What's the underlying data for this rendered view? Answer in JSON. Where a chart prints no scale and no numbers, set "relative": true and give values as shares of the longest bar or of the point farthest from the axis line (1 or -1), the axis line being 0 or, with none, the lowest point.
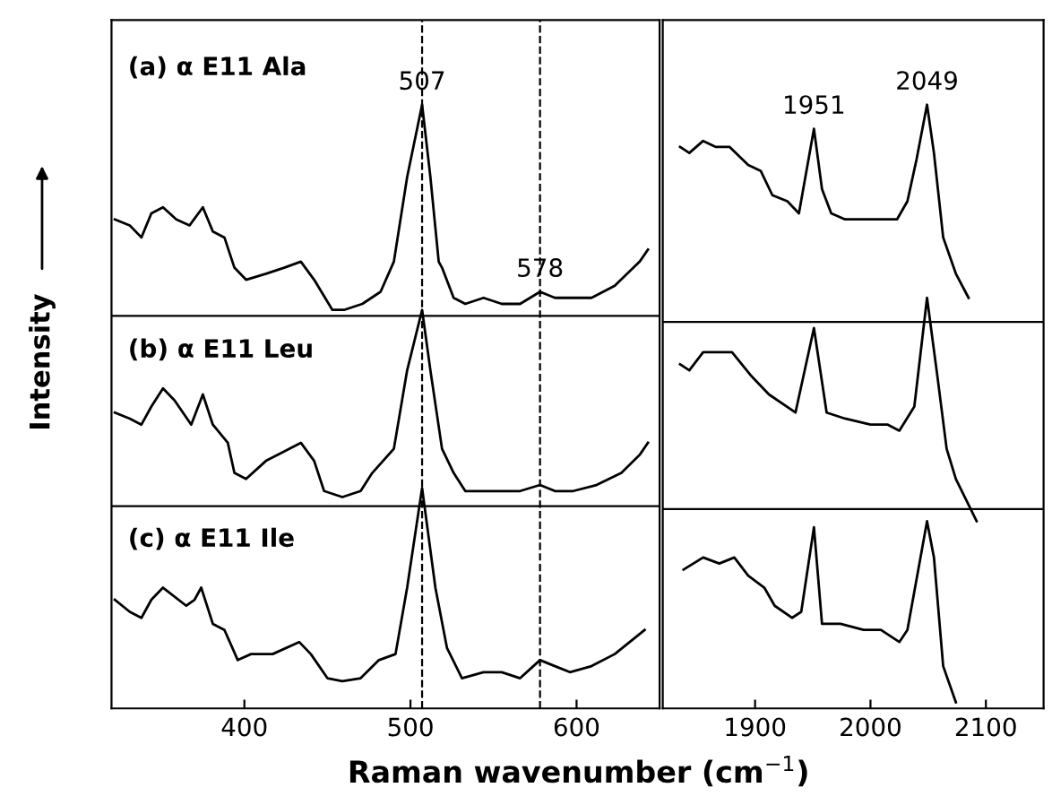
{
  "chart_data": [
    {
      "type": "line",
      "relative": true,
      "xlim": [
        320,
        650
      ],
      "xticks": [
        400,
        500,
        600
      ],
      "tick_labels": "x",
      "xlabel": "Raman wavenumber (cm$^{−1}$)",
      "ylabel": "Intensity",
      "grid": false,
      "legend": false,
      "marker": "none",
      "line_style": "solid",
      "annotations": [
        "(a) α E11 Ala",
        "(b) α E11 Leu",
        "(c) α E11 Ile",
        {
          "text": "507",
          "x": 507,
          "y": 1.0
        },
        {
          "text": "578",
          "x": 578,
          "y": 0.69
        }
      ],
      "ref_lines": [
        {
          "axis": "x",
          "value": 507,
          "color": "#000000",
          "line_style": "dashed"
        },
        {
          "axis": "x",
          "value": 578,
          "color": "#000000",
          "line_style": "dashed"
        },
        {
          "axis": "y",
          "value": 0.65,
          "color": "#000000"
        },
        {
          "axis": "y",
          "value": 0.335,
          "color": "#000000"
        }
      ],
      "series": [
        {
          "color": "#000000",
          "x": [
            322,
            331,
            338,
            344,
            351,
            359,
            367,
            375,
            381,
            388,
            394,
            401,
            413,
            424,
            434,
            442,
            453,
            460,
            471,
            482,
            490,
            498,
            507,
            512,
            517,
            519,
            526,
            533,
            544,
            555,
            566,
            578,
            587,
            598,
            609,
            623,
            638,
            643
          ],
          "values": [
            0.81,
            0.8,
            0.78,
            0.82,
            0.83,
            0.81,
            0.8,
            0.83,
            0.79,
            0.78,
            0.73,
            0.71,
            0.72,
            0.73,
            0.74,
            0.71,
            0.66,
            0.66,
            0.67,
            0.69,
            0.74,
            0.88,
            1.0,
            0.88,
            0.74,
            0.73,
            0.68,
            0.67,
            0.68,
            0.67,
            0.67,
            0.69,
            0.68,
            0.68,
            0.68,
            0.7,
            0.74,
            0.76
          ]
        },
        {
          "color": "#000000",
          "x": [
            322,
            331,
            338,
            344,
            351,
            358,
            368,
            375,
            381,
            390,
            394,
            401,
            413,
            434,
            442,
            448,
            459,
            470,
            477,
            490,
            498,
            507,
            512,
            519,
            526,
            533,
            544,
            555,
            566,
            578,
            587,
            598,
            612,
            627,
            638,
            643
          ],
          "values": [
            0.49,
            0.48,
            0.47,
            0.5,
            0.53,
            0.51,
            0.47,
            0.52,
            0.47,
            0.44,
            0.39,
            0.38,
            0.41,
            0.44,
            0.41,
            0.36,
            0.35,
            0.36,
            0.39,
            0.43,
            0.56,
            0.66,
            0.56,
            0.43,
            0.39,
            0.36,
            0.36,
            0.36,
            0.36,
            0.37,
            0.36,
            0.36,
            0.37,
            0.39,
            0.42,
            0.44
          ]
        },
        {
          "color": "#000000",
          "x": [
            322,
            331,
            338,
            344,
            351,
            365,
            370,
            374,
            381,
            388,
            396,
            404,
            417,
            433,
            440,
            450,
            459,
            470,
            481,
            491,
            498,
            507,
            515,
            522,
            531,
            544,
            555,
            566,
            578,
            587,
            596,
            609,
            623,
            641
          ],
          "values": [
            0.18,
            0.16,
            0.15,
            0.18,
            0.2,
            0.17,
            0.18,
            0.2,
            0.14,
            0.13,
            0.08,
            0.09,
            0.09,
            0.11,
            0.09,
            0.05,
            0.045,
            0.05,
            0.08,
            0.09,
            0.2,
            0.365,
            0.2,
            0.1,
            0.05,
            0.06,
            0.06,
            0.05,
            0.08,
            0.07,
            0.06,
            0.07,
            0.09,
            0.13
          ]
        }
      ]
    },
    {
      "type": "line",
      "relative": true,
      "xlim": [
        1820,
        2150
      ],
      "xticks": [
        1900,
        2000,
        2100
      ],
      "tick_labels": "x",
      "grid": false,
      "legend": false,
      "marker": "none",
      "line_style": "solid",
      "annotations": [
        {
          "text": "1951",
          "x": 1951,
          "y": 0.96
        },
        {
          "text": "2049",
          "x": 2049,
          "y": 1.0
        }
      ],
      "ref_lines": [
        {
          "axis": "y",
          "value": 0.64,
          "color": "#000000"
        },
        {
          "axis": "y",
          "value": 0.33,
          "color": "#000000"
        }
      ],
      "series": [
        {
          "color": "#000000",
          "x": [
            1835,
            1843,
            1855,
            1866,
            1878,
            1894,
            1905,
            1915,
            1928,
            1938,
            1951,
            1958,
            1966,
            1978,
            1994,
            2009,
            2023,
            2032,
            2040,
            2049,
            2055,
            2063,
            2074,
            2085
          ],
          "values": [
            0.93,
            0.92,
            0.94,
            0.93,
            0.93,
            0.9,
            0.89,
            0.85,
            0.84,
            0.82,
            0.96,
            0.86,
            0.82,
            0.81,
            0.81,
            0.81,
            0.81,
            0.84,
            0.91,
            1.0,
            0.92,
            0.78,
            0.72,
            0.68
          ]
        },
        {
          "color": "#000000",
          "x": [
            1835,
            1843,
            1855,
            1869,
            1880,
            1897,
            1912,
            1935,
            1951,
            1962,
            1978,
            2000,
            2015,
            2025,
            2038,
            2049,
            2058,
            2066,
            2074,
            2092
          ],
          "values": [
            0.57,
            0.56,
            0.59,
            0.59,
            0.59,
            0.55,
            0.52,
            0.49,
            0.63,
            0.49,
            0.48,
            0.47,
            0.47,
            0.46,
            0.5,
            0.68,
            0.55,
            0.43,
            0.38,
            0.31
          ]
        },
        {
          "color": "#000000",
          "x": [
            1838,
            1855,
            1869,
            1882,
            1894,
            1908,
            1917,
            1932,
            1940,
            1951,
            1958,
            1974,
            1994,
            2009,
            2025,
            2032,
            2049,
            2055,
            2063,
            2074
          ],
          "values": [
            0.23,
            0.25,
            0.24,
            0.25,
            0.22,
            0.2,
            0.17,
            0.15,
            0.16,
            0.3,
            0.14,
            0.14,
            0.13,
            0.13,
            0.11,
            0.13,
            0.31,
            0.25,
            0.07,
            0.01
          ]
        }
      ]
    }
  ]
}
